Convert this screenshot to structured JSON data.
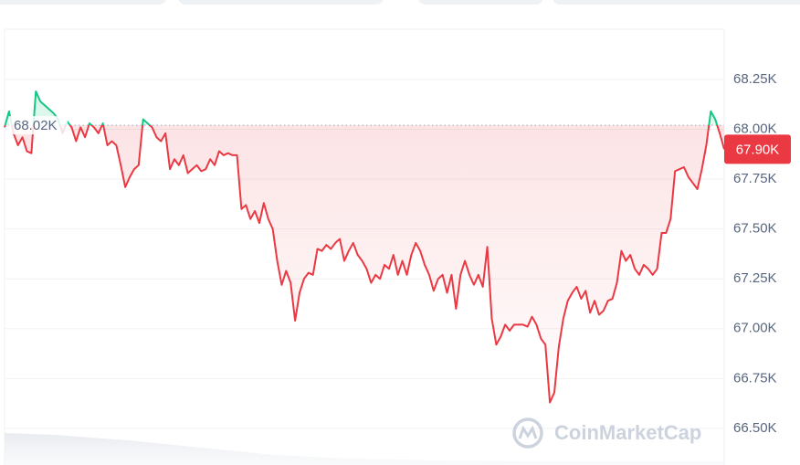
{
  "chart_data": {
    "type": "line",
    "watermark": "CoinMarketCap",
    "ylim": [
      66.33,
      68.5
    ],
    "yticks": [
      {
        "value": 66.5,
        "label": "66.50K"
      },
      {
        "value": 66.75,
        "label": "66.75K"
      },
      {
        "value": 67.0,
        "label": "67.00K"
      },
      {
        "value": 67.25,
        "label": "67.25K"
      },
      {
        "value": 67.5,
        "label": "67.50K"
      },
      {
        "value": 67.75,
        "label": "67.75K"
      },
      {
        "value": 68.0,
        "label": "68.00K"
      },
      {
        "value": 68.25,
        "label": "68.25K"
      }
    ],
    "grid": true,
    "baseline": {
      "value": 68.02,
      "label": "68.02K"
    },
    "last_price": {
      "value": 67.9,
      "label": "67.90K"
    },
    "up_color": "#16c784",
    "down_color": "#ea3943",
    "values": [
      68.01,
      68.09,
      67.98,
      67.92,
      67.96,
      67.89,
      67.88,
      68.19,
      68.14,
      68.12,
      68.1,
      68.08,
      68.05,
      67.98,
      68.04,
      68.01,
      67.94,
      68.01,
      67.96,
      68.03,
      68.01,
      67.98,
      68.03,
      67.92,
      67.94,
      67.92,
      67.82,
      67.71,
      67.76,
      67.8,
      67.82,
      68.05,
      68.03,
      68.01,
      67.96,
      67.94,
      67.98,
      67.8,
      67.85,
      67.82,
      67.87,
      67.78,
      67.8,
      67.82,
      67.79,
      67.8,
      67.85,
      67.82,
      67.89,
      67.87,
      67.88,
      67.87,
      67.87,
      67.6,
      67.62,
      67.55,
      67.59,
      67.53,
      67.63,
      67.55,
      67.5,
      67.34,
      67.22,
      67.29,
      67.23,
      67.04,
      67.18,
      67.25,
      67.28,
      67.27,
      67.4,
      67.39,
      67.42,
      67.4,
      67.43,
      67.45,
      67.34,
      67.39,
      67.43,
      67.37,
      67.34,
      67.3,
      67.23,
      67.27,
      67.25,
      67.32,
      67.3,
      67.37,
      67.27,
      67.34,
      67.27,
      67.37,
      67.43,
      67.39,
      67.32,
      67.27,
      67.19,
      67.25,
      67.27,
      67.18,
      67.27,
      67.1,
      67.27,
      67.34,
      67.27,
      67.22,
      67.27,
      67.21,
      67.41,
      67.05,
      66.92,
      66.96,
      67.02,
      66.99,
      67.02,
      67.02,
      67.02,
      67.01,
      67.06,
      67.02,
      66.95,
      66.92,
      66.63,
      66.68,
      66.91,
      67.05,
      67.14,
      67.18,
      67.21,
      67.15,
      67.19,
      67.08,
      67.14,
      67.07,
      67.09,
      67.14,
      67.15,
      67.23,
      67.39,
      67.34,
      67.37,
      67.3,
      67.27,
      67.32,
      67.3,
      67.27,
      67.3,
      67.48,
      67.48,
      67.55,
      67.79,
      67.8,
      67.81,
      67.76,
      67.73,
      67.7,
      67.8,
      67.92,
      68.09,
      68.05,
      67.98,
      67.9
    ]
  }
}
